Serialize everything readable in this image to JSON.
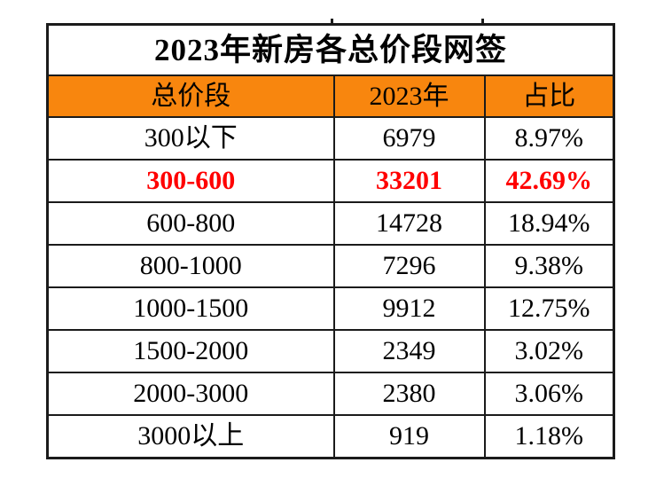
{
  "chart_data": {
    "type": "table",
    "title": "2023年新房各总价段网签",
    "columns": [
      "总价段",
      "2023年",
      "占比"
    ],
    "rows": [
      [
        "300以下",
        "6979",
        "8.97%"
      ],
      [
        "300-600",
        "33201",
        "42.69%"
      ],
      [
        "600-800",
        "14728",
        "18.94%"
      ],
      [
        "800-1000",
        "7296",
        "9.38%"
      ],
      [
        "1000-1500",
        "9912",
        "12.75%"
      ],
      [
        "1500-2000",
        "2349",
        "3.02%"
      ],
      [
        "2000-3000",
        "2380",
        "3.06%"
      ],
      [
        "3000以上",
        "919",
        "1.18%"
      ]
    ],
    "highlight_row": "300-600",
    "notes": "highlight row rendered in bold red; header row has orange background"
  },
  "colors": {
    "header_bg": "#f8860e",
    "highlight_text": "#ff0000",
    "border": "#1b1b1b",
    "text": "#000000",
    "background": "#ffffff"
  }
}
